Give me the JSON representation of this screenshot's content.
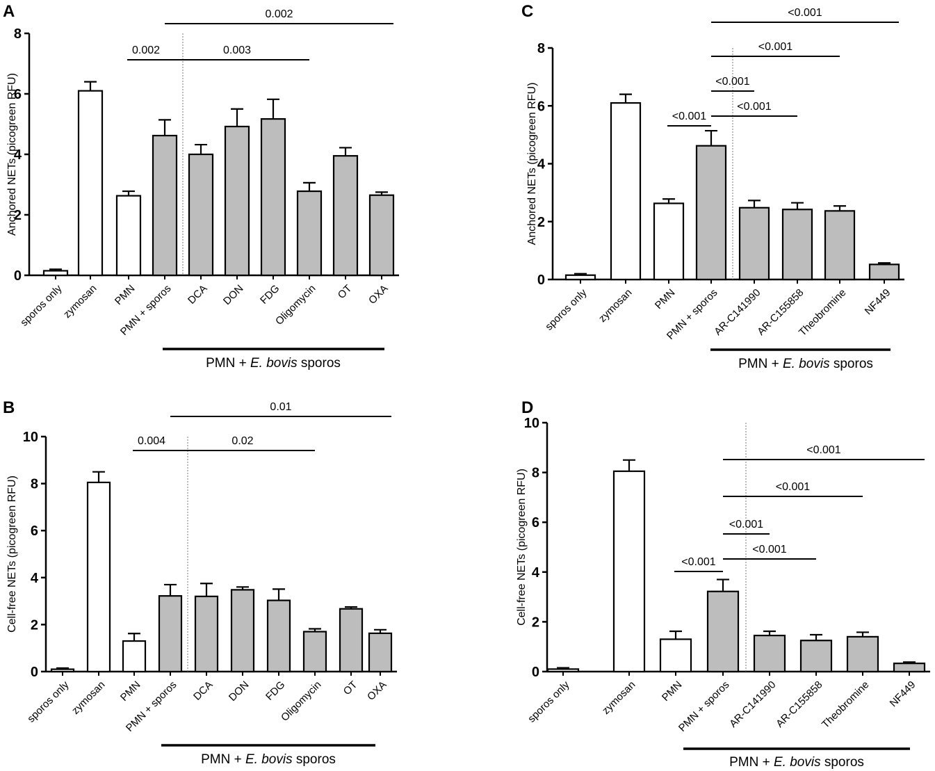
{
  "colors": {
    "control_bar": "#ffffff",
    "treatment_bar": "#bdbdbd",
    "stroke": "#000000"
  },
  "chart_data": [
    {
      "panel": "A",
      "type": "bar",
      "ylabel": "Anchored NETs (picogreen RFU)",
      "ylim": [
        0,
        8
      ],
      "yticks": [
        "0",
        "2",
        "4",
        "6",
        "8"
      ],
      "categories": [
        "sporos only",
        "zymosan",
        "PMN",
        "PMN + sporos",
        "DCA",
        "DON",
        "FDG",
        "Oligomycin",
        "OT",
        "OXA"
      ],
      "values": [
        0.15,
        6.1,
        2.63,
        4.62,
        4.0,
        4.92,
        5.17,
        2.78,
        3.95,
        2.65
      ],
      "errors": [
        0.05,
        0.3,
        0.15,
        0.52,
        0.32,
        0.58,
        0.65,
        0.28,
        0.27,
        0.1
      ],
      "fill": [
        "control_bar",
        "control_bar",
        "control_bar",
        "treatment_bar",
        "treatment_bar",
        "treatment_bar",
        "treatment_bar",
        "treatment_bar",
        "treatment_bar",
        "treatment_bar"
      ],
      "significance": [
        {
          "label": "0.002",
          "from": 2,
          "to": 3
        },
        {
          "label": "0.003",
          "from": 3,
          "to": 7
        },
        {
          "label": "0.002",
          "from": 3,
          "to": 9
        }
      ],
      "group_label": {
        "prefix": "PMN + ",
        "italic": "E. bovis",
        "suffix": " sporos"
      }
    },
    {
      "panel": "B",
      "type": "bar",
      "ylabel": "Cell-free NETs (picogreen RFU)",
      "ylim": [
        0,
        10
      ],
      "yticks": [
        "0",
        "2",
        "4",
        "6",
        "8",
        "10"
      ],
      "categories": [
        "sporos only",
        "zymosan",
        "PMN",
        "PMN + sporos",
        "DCA",
        "DON",
        "FDG",
        "Oligomycin",
        "OT",
        "OXA"
      ],
      "values": [
        0.1,
        8.05,
        1.3,
        3.22,
        3.2,
        3.48,
        3.03,
        1.7,
        2.67,
        1.63
      ],
      "errors": [
        0.05,
        0.45,
        0.32,
        0.48,
        0.55,
        0.12,
        0.48,
        0.12,
        0.08,
        0.15
      ],
      "fill": [
        "control_bar",
        "control_bar",
        "control_bar",
        "treatment_bar",
        "treatment_bar",
        "treatment_bar",
        "treatment_bar",
        "treatment_bar",
        "treatment_bar",
        "treatment_bar"
      ],
      "significance": [
        {
          "label": "0.004",
          "from": 2,
          "to": 3
        },
        {
          "label": "0.02",
          "from": 3,
          "to": 7
        },
        {
          "label": "0.01",
          "from": 3,
          "to": 9
        }
      ],
      "group_label": {
        "prefix": "PMN + ",
        "italic": "E. bovis",
        "suffix": " sporos"
      }
    },
    {
      "panel": "C",
      "type": "bar",
      "ylabel": "Anchored NETs (picogreen RFU)",
      "ylim": [
        0,
        8
      ],
      "yticks": [
        "0",
        "2",
        "4",
        "6",
        "8"
      ],
      "categories": [
        "sporos only",
        "zymosan",
        "PMN",
        "PMN + sporos",
        "AR-C141990",
        "AR-C155858",
        "Theobromine",
        "NF449"
      ],
      "values": [
        0.15,
        6.1,
        2.63,
        4.62,
        2.48,
        2.42,
        2.37,
        0.52
      ],
      "errors": [
        0.05,
        0.3,
        0.15,
        0.52,
        0.25,
        0.23,
        0.17,
        0.05
      ],
      "fill": [
        "control_bar",
        "control_bar",
        "control_bar",
        "treatment_bar",
        "treatment_bar",
        "treatment_bar",
        "treatment_bar",
        "treatment_bar"
      ],
      "significance": [
        {
          "label": "<0.001",
          "from": 2,
          "to": 3
        },
        {
          "label": "<0.001",
          "from": 3,
          "to": 4
        },
        {
          "label": "<0.001",
          "from": 3,
          "to": 5
        },
        {
          "label": "<0.001",
          "from": 3,
          "to": 6
        },
        {
          "label": "<0.001",
          "from": 3,
          "to": 7
        }
      ],
      "group_label": {
        "prefix": "PMN + ",
        "italic": "E. bovis",
        "suffix": " sporos"
      }
    },
    {
      "panel": "D",
      "type": "bar",
      "ylabel": "Cell-free NETs (picogreen RFU)",
      "ylim": [
        0,
        10
      ],
      "yticks": [
        "0",
        "2",
        "4",
        "6",
        "8",
        "10"
      ],
      "categories": [
        "sporos only",
        "zymosan",
        "PMN",
        "PMN + sporos",
        "AR-C141990",
        "AR-C155858",
        "Theobromine",
        "NF449"
      ],
      "values": [
        0.1,
        8.05,
        1.3,
        3.22,
        1.45,
        1.25,
        1.4,
        0.33
      ],
      "errors": [
        0.05,
        0.45,
        0.32,
        0.48,
        0.17,
        0.23,
        0.18,
        0.05
      ],
      "fill": [
        "control_bar",
        "control_bar",
        "control_bar",
        "treatment_bar",
        "treatment_bar",
        "treatment_bar",
        "treatment_bar",
        "treatment_bar"
      ],
      "significance": [
        {
          "label": "<0.001",
          "from": 2,
          "to": 3
        },
        {
          "label": "<0.001",
          "from": 3,
          "to": 4
        },
        {
          "label": "<0.001",
          "from": 3,
          "to": 5
        },
        {
          "label": "<0.001",
          "from": 3,
          "to": 6
        },
        {
          "label": "<0.001",
          "from": 3,
          "to": 7
        }
      ],
      "group_label": {
        "prefix": "PMN + ",
        "italic": "E. bovis",
        "suffix": " sporos"
      }
    }
  ]
}
